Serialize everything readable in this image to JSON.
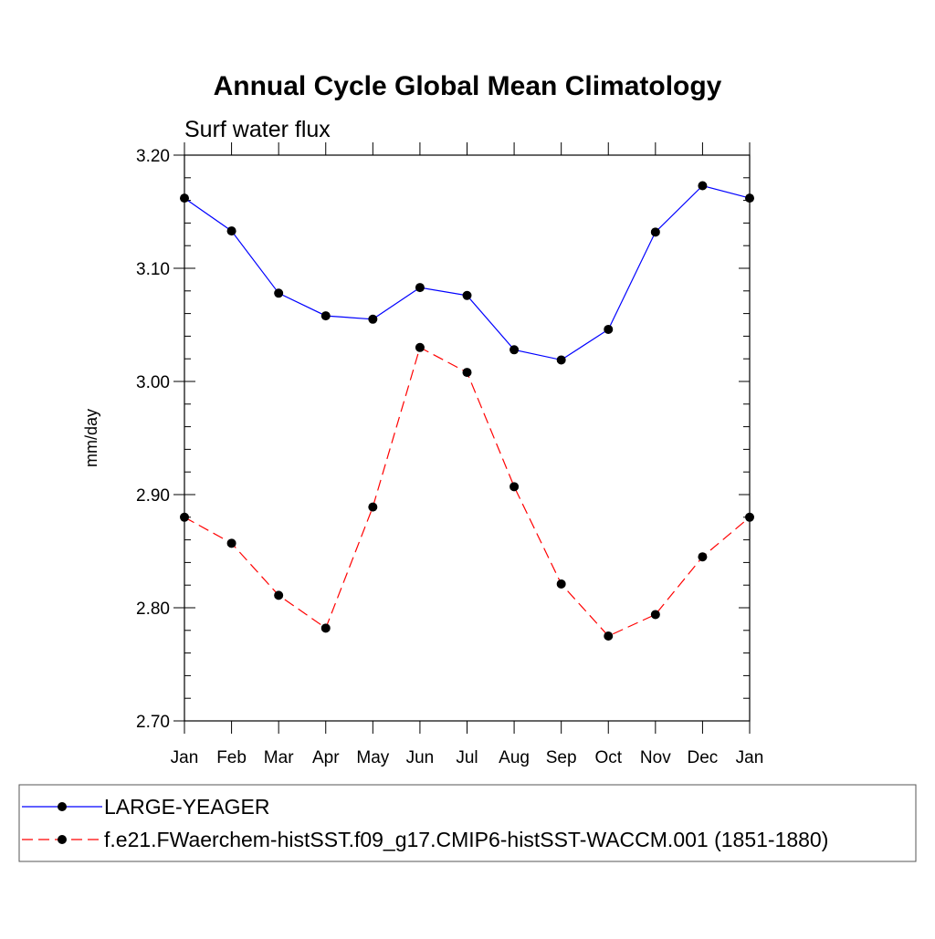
{
  "chart_data": {
    "type": "line",
    "title": "Annual Cycle Global Mean Climatology",
    "subtitle": "Surf water flux",
    "xlabel": "",
    "ylabel": "mm/day",
    "ylim": [
      2.7,
      3.2
    ],
    "yticks": [
      "2.70",
      "2.80",
      "2.90",
      "3.00",
      "3.10",
      "3.20"
    ],
    "categories": [
      "Jan",
      "Feb",
      "Mar",
      "Apr",
      "May",
      "Jun",
      "Jul",
      "Aug",
      "Sep",
      "Oct",
      "Nov",
      "Dec",
      "Jan"
    ],
    "grid": false,
    "legend_position": "bottom",
    "series": [
      {
        "name": "LARGE-YEAGER",
        "color": "#0000ff",
        "line_style": "solid",
        "values": [
          3.162,
          3.133,
          3.078,
          3.058,
          3.055,
          3.083,
          3.076,
          3.028,
          3.019,
          3.046,
          3.132,
          3.173,
          3.162
        ]
      },
      {
        "name": "f.e21.FWaerchem-histSST.f09_g17.CMIP6-histSST-WACCM.001 (1851-1880)",
        "color": "#ff0000",
        "line_style": "dashed",
        "values": [
          2.88,
          2.857,
          2.811,
          2.782,
          2.889,
          3.03,
          3.008,
          2.907,
          2.821,
          2.775,
          2.794,
          2.845,
          2.88
        ]
      }
    ]
  }
}
